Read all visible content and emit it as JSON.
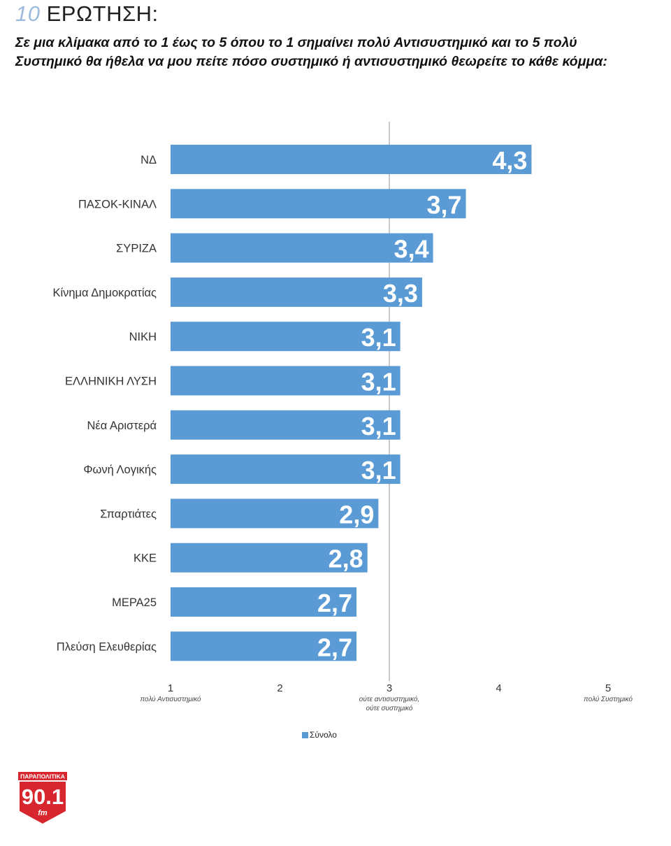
{
  "header": {
    "question_number": "10",
    "question_word": "ΕΡΩΤΗΣΗ:",
    "question_text": "Σε μια κλίμακα από το 1 έως το 5 όπου το 1 σημαίνει πολύ Αντισυστημικό και το 5 πολύ Συστημικό θα ήθελα να μου πείτε πόσο συστημικό ή αντισυστημικό θεωρείτε το κάθε κόμμα:"
  },
  "chart_data": {
    "type": "bar",
    "orientation": "horizontal",
    "categories": [
      "ΝΔ",
      "ΠΑΣΟΚ-ΚΙΝΑΛ",
      "ΣΥΡΙΖΑ",
      "Κίνημα Δημοκρατίας",
      "ΝΙΚΗ",
      "ΕΛΛΗΝΙΚΗ ΛΥΣΗ",
      "Νέα Αριστερά",
      "Φωνή Λογικής",
      "Σπαρτιάτες",
      "ΚΚΕ",
      "ΜΕΡΑ25",
      "Πλεύση Ελευθερίας"
    ],
    "series": [
      {
        "name": "Σύνολο",
        "values": [
          4.3,
          3.7,
          3.4,
          3.3,
          3.1,
          3.1,
          3.1,
          3.1,
          2.9,
          2.8,
          2.7,
          2.7
        ],
        "data_labels": [
          "4,3",
          "3,7",
          "3,4",
          "3,3",
          "3,1",
          "3,1",
          "3,1",
          "3,1",
          "2,9",
          "2,8",
          "2,7",
          "2,7"
        ]
      }
    ],
    "xlim": [
      1,
      5
    ],
    "x_ticks": [
      {
        "value": 1,
        "label": "1",
        "sublabel": [
          "πολύ Αντισυστημικό"
        ]
      },
      {
        "value": 2,
        "label": "2",
        "sublabel": []
      },
      {
        "value": 3,
        "label": "3",
        "sublabel": [
          "ούτε αντισυστημικό,",
          "ούτε συστημικό"
        ]
      },
      {
        "value": 4,
        "label": "4",
        "sublabel": []
      },
      {
        "value": 5,
        "label": "5",
        "sublabel": [
          "πολύ Συστημικό"
        ]
      }
    ],
    "reference_line": 3,
    "grid": false,
    "legend_position": "bottom",
    "bar_color": "#5b9bd5",
    "label_color": "#ffffff"
  },
  "legend": {
    "label": "Σύνολο"
  },
  "logo": {
    "top_text": "ΠΑΡΑΠΟΛΙΤΙΚΑ",
    "main_text": "90.1",
    "sub_text": "fm",
    "color": "#d7262e"
  }
}
